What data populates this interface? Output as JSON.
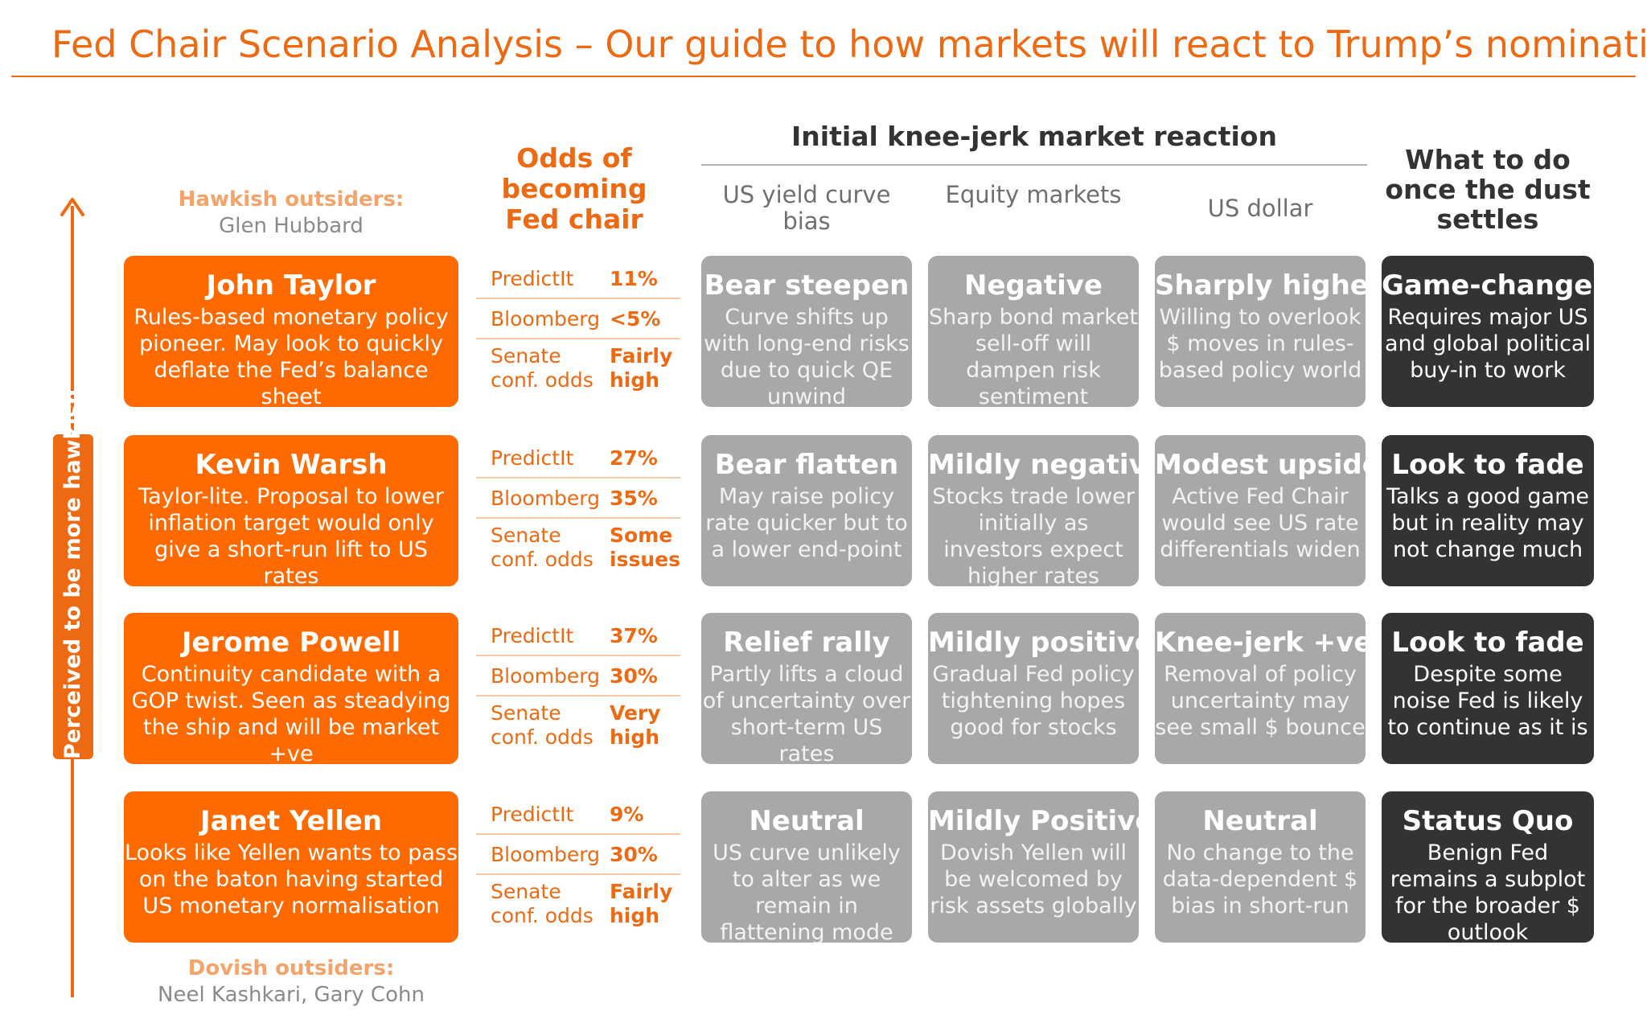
{
  "title": "Fed Chair Scenario Analysis – Our guide to how markets will react to Trump’s nomination",
  "headers": {
    "odds": "Odds of becoming Fed chair",
    "knee_jerk": "Initial knee-jerk market reaction",
    "yield": "US yield curve bias",
    "equity": "Equity markets",
    "dollar": "US dollar",
    "what_to_do": "What to do once the dust settles"
  },
  "hawkish_outsiders": {
    "label": "Hawkish outsiders:",
    "names": "Glen Hubbard"
  },
  "dovish_outsiders": {
    "label": "Dovish outsiders:",
    "names": "Neel Kashkari, Gary Cohn"
  },
  "axis_label": "Perceived to be more hawkish",
  "colors": {
    "accent": "#ff6a00",
    "market_box": "#a8a8a8",
    "dark_box": "#333333"
  },
  "odds_labels": {
    "predictit": "PredictIt",
    "bloomberg": "Bloomberg",
    "senate_1": "Senate",
    "senate_2": "conf. odds"
  },
  "rows": [
    {
      "name": "John Taylor",
      "desc": "Rules-based monetary policy pioneer. May look to quickly deflate the Fed’s balance sheet",
      "odds": {
        "predictit": "11%",
        "bloomberg": "<5%",
        "senate_1": "Fairly",
        "senate_2": "high"
      },
      "yield": {
        "title": "Bear steepen",
        "text": "Curve shifts up with long-end risks due to quick QE unwind"
      },
      "equity": {
        "title": "Negative",
        "text": "Sharp bond market sell-off will dampen risk sentiment"
      },
      "dollar": {
        "title": "Sharply higher",
        "text": "Willing to overlook $ moves in rules-based policy world"
      },
      "what": {
        "title": "Game-change?",
        "text": "Requires major US and global political buy-in to work"
      }
    },
    {
      "name": "Kevin Warsh",
      "desc": "Taylor-lite. Proposal to lower inflation target would only give a short-run lift to US rates",
      "odds": {
        "predictit": "27%",
        "bloomberg": "35%",
        "senate_1": "Some",
        "senate_2": "issues"
      },
      "yield": {
        "title": "Bear flatten",
        "text": "May raise policy rate quicker but to a lower end-point"
      },
      "equity": {
        "title": "Mildly negative",
        "text": "Stocks trade lower initially as investors expect higher rates"
      },
      "dollar": {
        "title": "Modest upside",
        "text": "Active Fed Chair would see US rate differentials widen"
      },
      "what": {
        "title": "Look to fade",
        "text": "Talks a good game but in reality may not change much"
      }
    },
    {
      "name": "Jerome Powell",
      "desc": "Continuity candidate with a GOP twist. Seen as steadying the ship and will be market +ve",
      "odds": {
        "predictit": "37%",
        "bloomberg": "30%",
        "senate_1": "Very",
        "senate_2": "high"
      },
      "yield": {
        "title": "Relief rally",
        "text": "Partly lifts a cloud of uncertainty over short-term US rates"
      },
      "equity": {
        "title": "Mildly positive",
        "text": "Gradual Fed policy tightening hopes good for stocks"
      },
      "dollar": {
        "title": "Knee-jerk +ve",
        "text": "Removal of policy uncertainty may see small $ bounce"
      },
      "what": {
        "title": "Look to fade",
        "text": "Despite some noise Fed is likely to continue as it is"
      }
    },
    {
      "name": "Janet Yellen",
      "desc": "Looks like Yellen wants to pass on the baton having started US monetary normalisation",
      "odds": {
        "predictit": "9%",
        "bloomberg": "30%",
        "senate_1": "Fairly",
        "senate_2": "high"
      },
      "yield": {
        "title": "Neutral",
        "text": "US curve unlikely to alter as we remain in flattening mode"
      },
      "equity": {
        "title": "Mildly Positive",
        "text": "Dovish Yellen will be welcomed by risk assets globally"
      },
      "dollar": {
        "title": "Neutral",
        "text": "No change to the data-dependent $ bias in short-run"
      },
      "what": {
        "title": "Status Quo",
        "text": "Benign Fed remains a subplot for the broader $ outlook"
      }
    }
  ]
}
